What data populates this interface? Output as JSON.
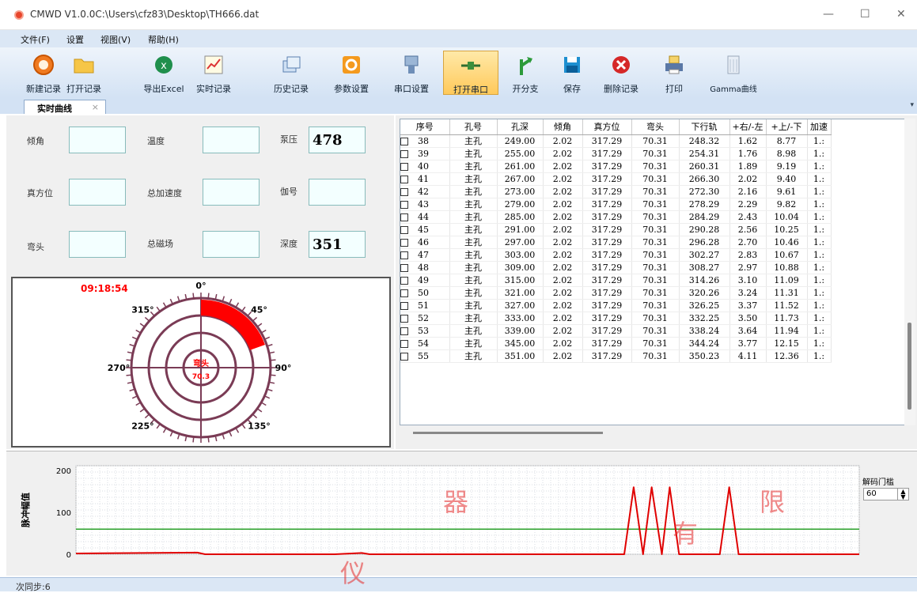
{
  "window": {
    "title": "CMWD V1.0.0C:\\Users\\cfz83\\Desktop\\TH666.dat",
    "min": "—",
    "max": "☐",
    "close": "✕"
  },
  "menu": [
    {
      "label": "文件(F)"
    },
    {
      "label": "设置"
    },
    {
      "label": "视图(V)"
    },
    {
      "label": "帮助(H)"
    }
  ],
  "toolbar": [
    {
      "label": "新建记录",
      "icon": "new-record-icon"
    },
    {
      "label": "打开记录",
      "icon": "folder-open-icon"
    },
    {
      "label": "导出Excel",
      "icon": "excel-icon"
    },
    {
      "label": "实时记录",
      "icon": "chart-pencil-icon"
    },
    {
      "label": "历史记录",
      "icon": "history-icon"
    },
    {
      "label": "参数设置",
      "icon": "gear-icon"
    },
    {
      "label": "串口设置",
      "icon": "serial-icon"
    },
    {
      "label": "打开串口",
      "icon": "plug-icon"
    },
    {
      "label": "开分支",
      "icon": "branch-icon"
    },
    {
      "label": "保存",
      "icon": "save-icon"
    },
    {
      "label": "删除记录",
      "icon": "delete-icon"
    },
    {
      "label": "打印",
      "icon": "printer-icon"
    },
    {
      "label": "Gamma曲线",
      "icon": "gamma-icon"
    }
  ],
  "tab": {
    "label": "实时曲线",
    "close": "×"
  },
  "fields": {
    "incline": {
      "label": "倾角",
      "value": ""
    },
    "temperature": {
      "label": "温度",
      "value": ""
    },
    "pump_pressure": {
      "label": "泵压",
      "value": "478"
    },
    "true_azimuth": {
      "label": "真方位",
      "value": ""
    },
    "total_accel": {
      "label": "总加速度",
      "value": ""
    },
    "probe_no": {
      "label": "伽号",
      "value": ""
    },
    "toolface": {
      "label": "弯头",
      "value": ""
    },
    "total_magnetic": {
      "label": "总磁场",
      "value": ""
    },
    "depth": {
      "label": "深度",
      "value": "351"
    }
  },
  "gauge": {
    "time": "09:18:54",
    "center_label": "弯头",
    "center_value": "70.3",
    "toolface_deg": 70.31,
    "angle_labels": [
      "0°",
      "45°",
      "90°",
      "135°",
      "180°",
      "225°",
      "270°",
      "315°"
    ],
    "accent": "#ff0000",
    "ring_color": "#7a3b55"
  },
  "table": {
    "headers": [
      "序号",
      "孔号",
      "孔深",
      "倾角",
      "真方位",
      "弯头",
      "下行轨",
      "+右/-左",
      "+上/-下",
      "加速"
    ],
    "rows": [
      [
        "38",
        "主孔",
        "249.00",
        "2.02",
        "317.29",
        "70.31",
        "248.32",
        "1.62",
        "8.77",
        "1.:"
      ],
      [
        "39",
        "主孔",
        "255.00",
        "2.02",
        "317.29",
        "70.31",
        "254.31",
        "1.76",
        "8.98",
        "1.:"
      ],
      [
        "40",
        "主孔",
        "261.00",
        "2.02",
        "317.29",
        "70.31",
        "260.31",
        "1.89",
        "9.19",
        "1.:"
      ],
      [
        "41",
        "主孔",
        "267.00",
        "2.02",
        "317.29",
        "70.31",
        "266.30",
        "2.02",
        "9.40",
        "1.:"
      ],
      [
        "42",
        "主孔",
        "273.00",
        "2.02",
        "317.29",
        "70.31",
        "272.30",
        "2.16",
        "9.61",
        "1.:"
      ],
      [
        "43",
        "主孔",
        "279.00",
        "2.02",
        "317.29",
        "70.31",
        "278.29",
        "2.29",
        "9.82",
        "1.:"
      ],
      [
        "44",
        "主孔",
        "285.00",
        "2.02",
        "317.29",
        "70.31",
        "284.29",
        "2.43",
        "10.04",
        "1.:"
      ],
      [
        "45",
        "主孔",
        "291.00",
        "2.02",
        "317.29",
        "70.31",
        "290.28",
        "2.56",
        "10.25",
        "1.:"
      ],
      [
        "46",
        "主孔",
        "297.00",
        "2.02",
        "317.29",
        "70.31",
        "296.28",
        "2.70",
        "10.46",
        "1.:"
      ],
      [
        "47",
        "主孔",
        "303.00",
        "2.02",
        "317.29",
        "70.31",
        "302.27",
        "2.83",
        "10.67",
        "1.:"
      ],
      [
        "48",
        "主孔",
        "309.00",
        "2.02",
        "317.29",
        "70.31",
        "308.27",
        "2.97",
        "10.88",
        "1.:"
      ],
      [
        "49",
        "主孔",
        "315.00",
        "2.02",
        "317.29",
        "70.31",
        "314.26",
        "3.10",
        "11.09",
        "1.:"
      ],
      [
        "50",
        "主孔",
        "321.00",
        "2.02",
        "317.29",
        "70.31",
        "320.26",
        "3.24",
        "11.31",
        "1.:"
      ],
      [
        "51",
        "主孔",
        "327.00",
        "2.02",
        "317.29",
        "70.31",
        "326.25",
        "3.37",
        "11.52",
        "1.:"
      ],
      [
        "52",
        "主孔",
        "333.00",
        "2.02",
        "317.29",
        "70.31",
        "332.25",
        "3.50",
        "11.73",
        "1.:"
      ],
      [
        "53",
        "主孔",
        "339.00",
        "2.02",
        "317.29",
        "70.31",
        "338.24",
        "3.64",
        "11.94",
        "1.:"
      ],
      [
        "54",
        "主孔",
        "345.00",
        "2.02",
        "317.29",
        "70.31",
        "344.24",
        "3.77",
        "12.15",
        "1.:"
      ],
      [
        "55",
        "主孔",
        "351.00",
        "2.02",
        "317.29",
        "70.31",
        "350.23",
        "4.11",
        "12.36",
        "1.:"
      ]
    ]
  },
  "pulse_chart": {
    "ylabel": "脉冲幅值",
    "yticks": [
      "200",
      "100",
      "0"
    ],
    "threshold_label": "解码门槛",
    "threshold_value": "60",
    "threshold_line": 60,
    "ymax": 200
  },
  "chart_data": {
    "type": "line",
    "ylabel": "脉冲幅值",
    "ylim": [
      0,
      200
    ],
    "series": [
      {
        "points": [
          [
            0,
            2
          ],
          [
            155,
            4
          ],
          [
            165,
            0
          ],
          [
            330,
            0
          ],
          [
            365,
            3
          ],
          [
            375,
            0
          ],
          [
            700,
            0
          ],
          [
            712,
            160
          ],
          [
            724,
            0
          ],
          [
            735,
            160
          ],
          [
            748,
            0
          ],
          [
            758,
            160
          ],
          [
            770,
            0
          ],
          [
            822,
            0
          ],
          [
            834,
            160
          ],
          [
            846,
            0
          ],
          [
            1000,
            0
          ]
        ]
      }
    ],
    "xlim": [
      0,
      1000
    ],
    "threshold": 60
  },
  "status": {
    "text": "次同步:6"
  },
  "colors": {
    "toolbar_active": "#ffc95a",
    "pulse_line": "#e00000",
    "threshold_line": "#2aa02a"
  }
}
